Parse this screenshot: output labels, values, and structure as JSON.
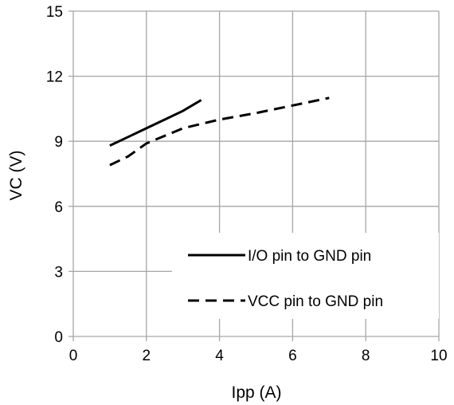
{
  "chart_data": {
    "type": "line",
    "title": "",
    "xlabel": "Ipp (A)",
    "ylabel": "VC (V)",
    "xlim": [
      0,
      10
    ],
    "ylim": [
      0,
      15
    ],
    "x_ticks": [
      "0",
      "2",
      "4",
      "6",
      "8",
      "10"
    ],
    "y_ticks": [
      "0",
      "3",
      "6",
      "9",
      "12",
      "15"
    ],
    "grid": true,
    "legend_position": "bottom-right",
    "series": [
      {
        "name": "I/O pin to GND pin",
        "style": "solid",
        "color": "#000000",
        "x": [
          1,
          1.5,
          2,
          2.5,
          3,
          3.5
        ],
        "y": [
          8.8,
          9.2,
          9.6,
          10.0,
          10.4,
          10.9
        ]
      },
      {
        "name": "VCC pin to GND pin",
        "style": "dashed",
        "color": "#000000",
        "x": [
          1,
          1.5,
          2,
          3,
          4,
          5,
          6,
          7
        ],
        "y": [
          7.9,
          8.3,
          8.9,
          9.6,
          10.0,
          10.3,
          10.65,
          11.0
        ]
      }
    ]
  }
}
